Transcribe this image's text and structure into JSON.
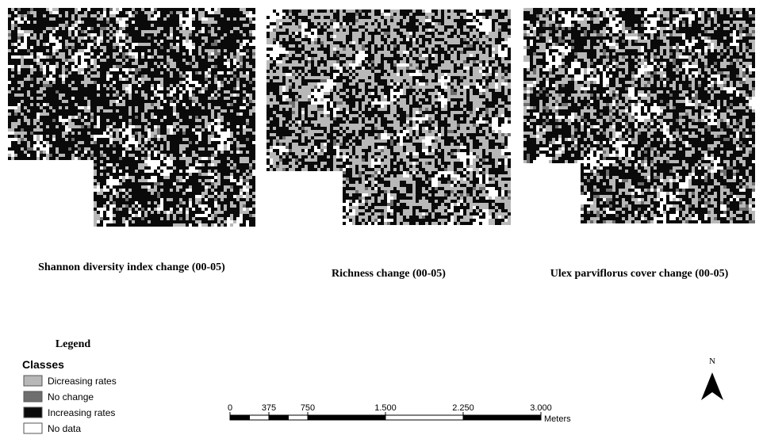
{
  "maps": [
    {
      "title": "Shannon diversity index change (00-05)"
    },
    {
      "title": "Richness change (00-05)"
    },
    {
      "title": "Ulex parviflorus cover change (00-05)"
    }
  ],
  "legend": {
    "title": "Legend",
    "subtitle": "Classes",
    "items": [
      {
        "label": "Dicreasing rates",
        "color": "#b8b8b8"
      },
      {
        "label": "No change",
        "color": "#6e6e6e"
      },
      {
        "label": "Increasing rates",
        "color": "#0a0a0a"
      },
      {
        "label": "No data",
        "color": "#ffffff"
      }
    ]
  },
  "scale_bar": {
    "unit": "Meters",
    "ticks": [
      0,
      375,
      750,
      {
        "value": 1500,
        "label": "1.500"
      },
      {
        "value": 2250,
        "label": "2.250"
      },
      {
        "value": 3000,
        "label": "3.000"
      }
    ]
  },
  "north_arrow": {
    "label": "N"
  }
}
